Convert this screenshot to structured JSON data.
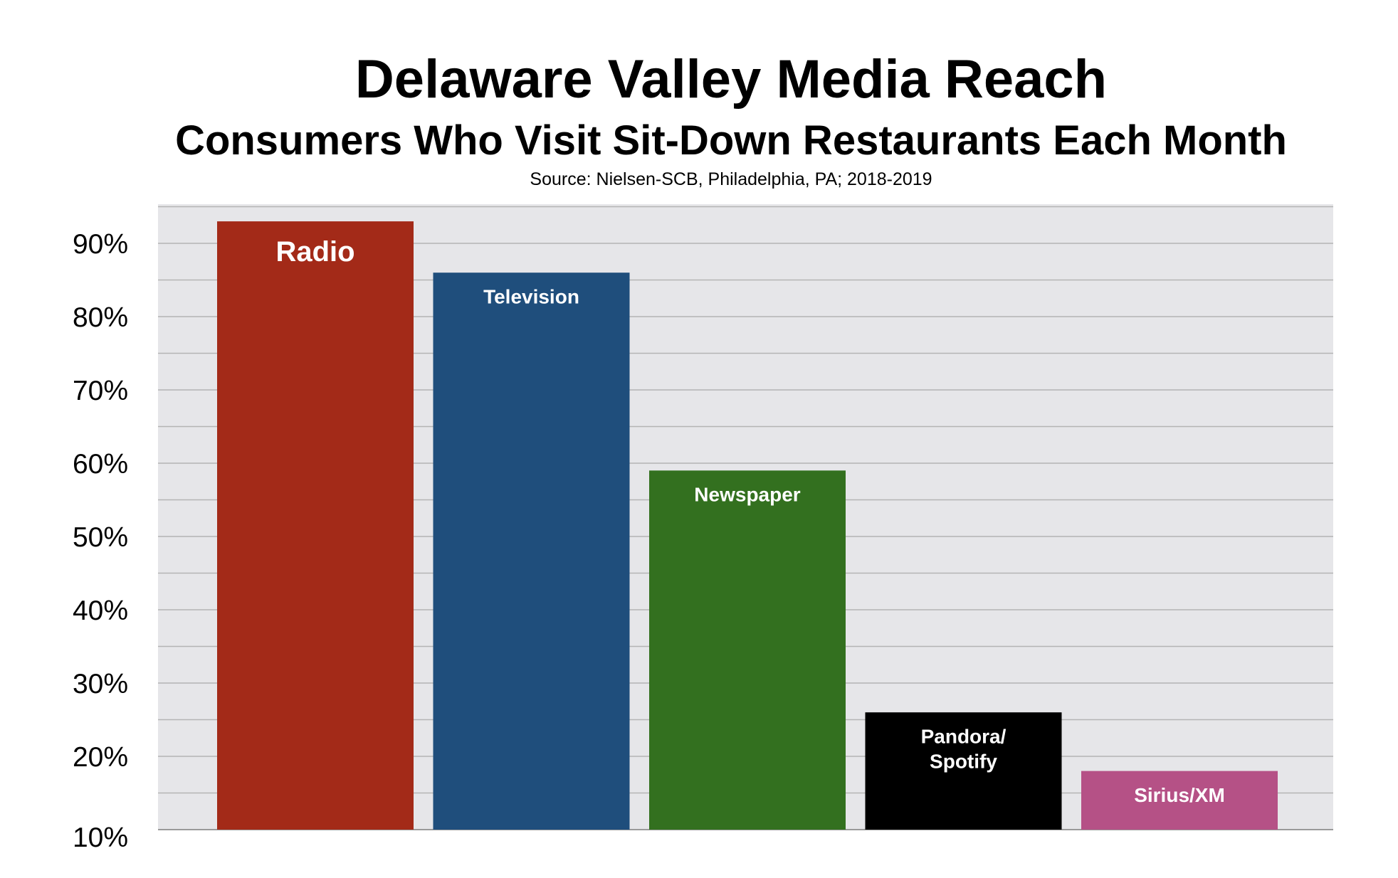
{
  "chart_data": {
    "type": "bar",
    "title": "Delaware Valley Media Reach",
    "subtitle": "Consumers Who Visit Sit-Down Restaurants Each Month",
    "source": "Source: Nielsen-SCB, Philadelphia, PA; 2018-2019",
    "categories": [
      "Radio",
      "Television",
      "Newspaper",
      "Pandora/\nSpotify",
      "Sirius/XM"
    ],
    "values": [
      93,
      86,
      59,
      26,
      18
    ],
    "bar_colors": [
      "#a32a18",
      "#1f4e7c",
      "#33701f",
      "#000000",
      "#b55186"
    ],
    "ylim": [
      10,
      95
    ],
    "yticks": [
      10,
      20,
      30,
      40,
      50,
      60,
      70,
      80,
      90
    ],
    "ytick_labels": [
      "10%",
      "20%",
      "30%",
      "40%",
      "50%",
      "60%",
      "70%",
      "80%",
      "90%"
    ],
    "xlabel": "",
    "ylabel": "",
    "grid": true,
    "legend": false,
    "plot_background": "#e6e6e9",
    "gridline_color": "#b4b4b4"
  }
}
